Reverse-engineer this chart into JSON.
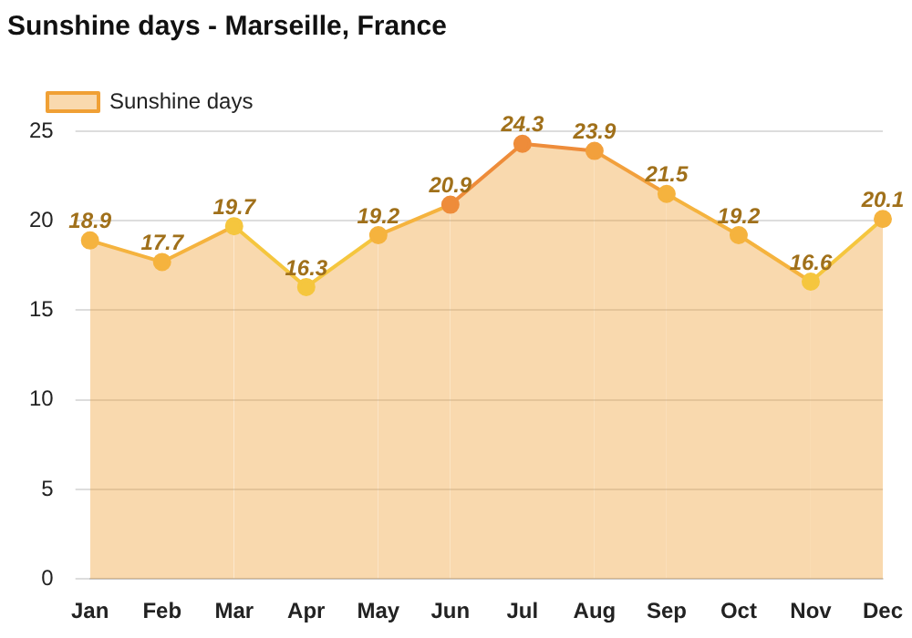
{
  "chart_data": {
    "type": "area",
    "title": "Sunshine days - Marseille, France",
    "categories": [
      "Jan",
      "Feb",
      "Mar",
      "Apr",
      "May",
      "Jun",
      "Jul",
      "Aug",
      "Sep",
      "Oct",
      "Nov",
      "Dec"
    ],
    "series": [
      {
        "name": "Sunshine days",
        "color": "#f0a035",
        "colors": [
          "#f5b33e",
          "#f5b33e",
          "#f5c63e",
          "#f5c63e",
          "#f5b33e",
          "#ee8c3a",
          "#ee8c3a",
          "#f2a03c",
          "#f5b33e",
          "#f5b33e",
          "#f5c63e",
          "#f5b33e"
        ],
        "values": [
          18.9,
          17.7,
          19.7,
          16.3,
          19.2,
          20.9,
          24.3,
          23.9,
          21.5,
          19.2,
          16.6,
          20.1
        ]
      }
    ],
    "ylim": [
      0,
      25
    ],
    "yticks": [
      0,
      5,
      10,
      15,
      20,
      25
    ],
    "grid": "y",
    "legend": "top left",
    "marker": "circle",
    "data_labels": true
  }
}
